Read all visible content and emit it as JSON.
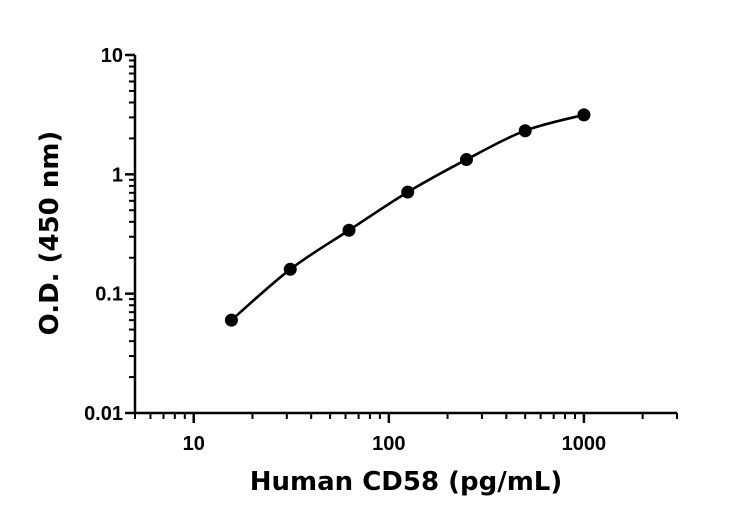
{
  "chart_data": {
    "type": "scatter",
    "title": "",
    "xlabel": "Human CD58 (pg/mL)",
    "ylabel": "O.D. (450 nm)",
    "x_scale": "log",
    "y_scale": "log",
    "xlim": [
      5,
      3000
    ],
    "ylim": [
      0.01,
      10
    ],
    "x_ticks": [
      {
        "value": 10,
        "label": "10"
      },
      {
        "value": 100,
        "label": "100"
      },
      {
        "value": 1000,
        "label": "1000"
      }
    ],
    "y_ticks": [
      {
        "value": 0.01,
        "label": "0.01"
      },
      {
        "value": 0.1,
        "label": "0.1"
      },
      {
        "value": 1,
        "label": "1"
      },
      {
        "value": 10,
        "label": "10"
      }
    ],
    "grid": false,
    "legend": "none",
    "series": [
      {
        "x": [
          15.6,
          31.25,
          62.5,
          125,
          250,
          500,
          1000
        ],
        "y": [
          0.06,
          0.16,
          0.34,
          0.71,
          1.33,
          2.32,
          3.15
        ],
        "color": "#000000",
        "fit_curve": true
      }
    ]
  }
}
